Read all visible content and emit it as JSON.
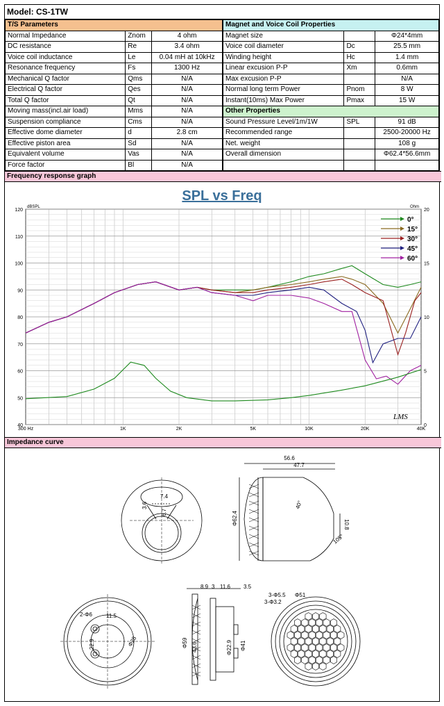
{
  "model": "Model: CS-1TW",
  "ts": {
    "header": "T/S Parameters",
    "rows": [
      {
        "name": "Normal Impedance",
        "sym": "Znom",
        "val": "4 ohm"
      },
      {
        "name": "DC resistance",
        "sym": "Re",
        "val": "3.4 ohm"
      },
      {
        "name": "Voice coil inductance",
        "sym": "Le",
        "val": "0.04 mH at 10kHz"
      },
      {
        "name": "Resonance frequency",
        "sym": "Fs",
        "val": "1300 Hz"
      },
      {
        "name": "Mechanical Q factor",
        "sym": "Qms",
        "val": "N/A"
      },
      {
        "name": "Electrical Q factor",
        "sym": "Qes",
        "val": "N/A"
      },
      {
        "name": "Total Q factor",
        "sym": "Qt",
        "val": "N/A"
      },
      {
        "name": "Moving mass(incl.air load)",
        "sym": "Mms",
        "val": "N/A"
      },
      {
        "name": "Suspension compliance",
        "sym": "Cms",
        "val": "N/A"
      },
      {
        "name": "Effective dome diameter",
        "sym": "d",
        "val": "2.8 cm"
      },
      {
        "name": "Effective piston area",
        "sym": "Sd",
        "val": "N/A"
      },
      {
        "name": "Equivalent volume",
        "sym": "Vas",
        "val": "N/A"
      },
      {
        "name": "Force factor",
        "sym": "Bl",
        "val": "N/A"
      }
    ]
  },
  "magnet": {
    "header": "Magnet and Voice Coil Properties",
    "rows": [
      {
        "name": "Magnet size",
        "sym": "",
        "val": "Φ24*4mm"
      },
      {
        "name": "Voice coil diameter",
        "sym": "Dc",
        "val": "25.5 mm"
      },
      {
        "name": "Winding height",
        "sym": "Hc",
        "val": "1.4 mm"
      },
      {
        "name": "Linear excusion P-P",
        "sym": "Xm",
        "val": "0.6mm"
      },
      {
        "name": "Max excusion P-P",
        "sym": "",
        "val": "N/A"
      },
      {
        "name": "Normal long term Power",
        "sym": "Pnom",
        "val": "8 W"
      },
      {
        "name": "Instant(10ms) Max Power",
        "sym": "Pmax",
        "val": "15 W"
      }
    ]
  },
  "other": {
    "header": "Other Properties",
    "rows": [
      {
        "name": "Sound Pressure Level/1m/1W",
        "sym": "SPL",
        "val": "91 dB"
      },
      {
        "name": "Recommended range",
        "sym": "",
        "val": "2500-20000 Hz"
      },
      {
        "name": "Net. weight",
        "sym": "",
        "val": "108 g"
      },
      {
        "name": "Overall dimension",
        "sym": "",
        "val": "Φ62.4*56.6mm"
      }
    ]
  },
  "sections": {
    "freq": "Frequency response graph",
    "imp": "Impedance curve"
  },
  "chart_data": {
    "type": "line",
    "title": "SPL vs Freq",
    "ylabel": "dBSPL",
    "y2label": "Ohm",
    "x_scale": "log",
    "xlim": [
      300,
      40000
    ],
    "ylim": [
      40,
      120
    ],
    "y2lim": [
      0,
      20
    ],
    "x_ticks": [
      {
        "v": 300,
        "label": "300 Hz"
      },
      {
        "v": 1000,
        "label": "1K"
      },
      {
        "v": 2000,
        "label": "2K"
      },
      {
        "v": 5000,
        "label": "5K"
      },
      {
        "v": 10000,
        "label": "10K"
      },
      {
        "v": 20000,
        "label": "20K"
      },
      {
        "v": 40000,
        "label": "40K"
      }
    ],
    "y_ticks": [
      40,
      50,
      60,
      70,
      80,
      90,
      100,
      110,
      120
    ],
    "y2_ticks": [
      0,
      5,
      10,
      15,
      20
    ],
    "grid": true,
    "legend_position": "top-right",
    "watermark": "LMS",
    "series": [
      {
        "name": "0°",
        "color": "#1e8a1e",
        "axis": "left",
        "x": [
          300,
          400,
          500,
          700,
          900,
          1200,
          1500,
          2000,
          2500,
          3000,
          4000,
          5000,
          6000,
          8000,
          10000,
          12000,
          15000,
          17000,
          20000,
          25000,
          30000,
          35000,
          40000
        ],
        "y": [
          74,
          78,
          80,
          85,
          89,
          92,
          93,
          90,
          91,
          90,
          90,
          90,
          91,
          93,
          95,
          96,
          98,
          99,
          96,
          92,
          91,
          92,
          93
        ]
      },
      {
        "name": "15°",
        "color": "#8a6a20",
        "axis": "left",
        "x": [
          300,
          400,
          500,
          700,
          900,
          1200,
          1500,
          2000,
          2500,
          3000,
          4000,
          5000,
          6000,
          8000,
          10000,
          12000,
          15000,
          17000,
          20000,
          25000,
          30000,
          35000,
          40000
        ],
        "y": [
          74,
          78,
          80,
          85,
          89,
          92,
          93,
          90,
          91,
          90,
          89,
          90,
          91,
          92,
          93,
          94,
          95,
          94,
          92,
          85,
          74,
          83,
          91
        ]
      },
      {
        "name": "30°",
        "color": "#9a2020",
        "axis": "left",
        "x": [
          300,
          400,
          500,
          700,
          900,
          1200,
          1500,
          2000,
          2500,
          3000,
          4000,
          5000,
          6000,
          8000,
          10000,
          12000,
          15000,
          17000,
          20000,
          25000,
          30000,
          33000,
          37000,
          40000
        ],
        "y": [
          74,
          78,
          80,
          85,
          89,
          92,
          93,
          90,
          91,
          90,
          89,
          89,
          90,
          91,
          92,
          93,
          94,
          92,
          89,
          86,
          66,
          74,
          86,
          89
        ]
      },
      {
        "name": "45°",
        "color": "#202080",
        "axis": "left",
        "x": [
          300,
          400,
          500,
          700,
          900,
          1200,
          1500,
          2000,
          2500,
          3000,
          4000,
          5000,
          6000,
          8000,
          10000,
          12000,
          15000,
          18000,
          20000,
          22000,
          25000,
          30000,
          35000,
          40000
        ],
        "y": [
          74,
          78,
          80,
          85,
          89,
          92,
          93,
          90,
          91,
          89,
          88,
          88,
          89,
          90,
          91,
          90,
          85,
          82,
          75,
          63,
          70,
          72,
          72,
          80
        ]
      },
      {
        "name": "60°",
        "color": "#a020a0",
        "axis": "left",
        "x": [
          300,
          400,
          500,
          700,
          900,
          1200,
          1500,
          2000,
          2500,
          3000,
          4000,
          5000,
          6000,
          8000,
          10000,
          12000,
          15000,
          17000,
          20000,
          23000,
          26000,
          30000,
          35000,
          40000
        ],
        "y": [
          74,
          78,
          80,
          85,
          89,
          92,
          93,
          90,
          91,
          89,
          88,
          86,
          88,
          88,
          87,
          85,
          82,
          82,
          64,
          57,
          58,
          55,
          60,
          62
        ]
      },
      {
        "name": "Impedance",
        "color": "#1e8a1e",
        "axis": "right",
        "x": [
          300,
          500,
          700,
          900,
          1100,
          1300,
          1500,
          1800,
          2200,
          3000,
          4000,
          6000,
          8000,
          10000,
          15000,
          20000,
          30000,
          40000
        ],
        "y": [
          2.4,
          2.6,
          3.3,
          4.3,
          5.8,
          5.5,
          4.3,
          3.1,
          2.5,
          2.2,
          2.2,
          2.3,
          2.5,
          2.7,
          3.2,
          3.6,
          4.4,
          5.1
        ]
      }
    ]
  },
  "drawings": {
    "front": {
      "d1": "7.4",
      "d2": "3.6",
      "d3": "6.7"
    },
    "side": {
      "top1": "56.6",
      "top2": "47.7",
      "dia": "Φ62.4",
      "angle": "40°",
      "h": "10.8",
      "angle2": "105°"
    },
    "rear": {
      "holes": "2-Φ6",
      "d1": "11.5",
      "d2": "22.9",
      "dia": "Φ25"
    },
    "section": {
      "a": "8.9",
      "b": "3",
      "c": "11.6",
      "d": "3.5",
      "dia1": "Φ59",
      "dia2": "43.6",
      "dia3": "Φ22.9",
      "dia4": "Φ41"
    },
    "grille": {
      "a": "3-Φ5.5",
      "b": "Φ51",
      "c": "3-Φ3.2"
    }
  }
}
